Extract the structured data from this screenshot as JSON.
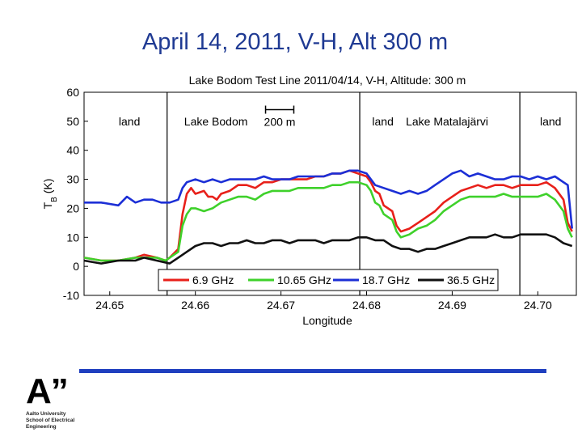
{
  "slide": {
    "title": "April 14, 2011, V-H, Alt 300 m"
  },
  "logo": {
    "mark": "A”",
    "lines": [
      "Aalto University",
      "School of Electrical",
      "Engineering"
    ]
  },
  "colors": {
    "title": "#1f3a93",
    "footer_rule": "#1f3fbf"
  },
  "chart_data": {
    "type": "line",
    "title": "Lake Bodom Test Line 2011/04/14, V-H, Altitude: 300 m",
    "xlabel": "Longitude",
    "ylabel": "T_B (K)",
    "xlim": [
      24.647,
      24.7045
    ],
    "ylim": [
      -10,
      60
    ],
    "xticks": [
      24.65,
      24.66,
      24.67,
      24.68,
      24.69,
      24.7
    ],
    "xtick_labels": [
      "24.65",
      "24.66",
      "24.67",
      "24.68",
      "24.69",
      "24.70"
    ],
    "yticks": [
      -10,
      0,
      10,
      20,
      30,
      40,
      50,
      60
    ],
    "grid": false,
    "legend_position": "bottom",
    "vlines": [
      24.6567,
      24.6792,
      24.6979
    ],
    "regions": [
      {
        "label": "land",
        "x": 24.6523,
        "y": 50
      },
      {
        "label": "Lake Bodom",
        "x": 24.6624,
        "y": 50
      },
      {
        "label": "land",
        "x": 24.6819,
        "y": 50
      },
      {
        "label": "Lake Matalajärvi",
        "x": 24.6894,
        "y": 50
      },
      {
        "label": "land",
        "x": 24.7015,
        "y": 50
      }
    ],
    "scale_bar": {
      "label": "200 m",
      "x_start": 24.6682,
      "x_end": 24.6715,
      "y": 54
    },
    "series": [
      {
        "name": "6.9 GHz",
        "color": "#e8201a",
        "x": [
          24.647,
          24.649,
          24.651,
          24.653,
          24.654,
          24.6555,
          24.6565,
          24.657,
          24.658,
          24.6585,
          24.659,
          24.6595,
          24.66,
          24.661,
          24.6615,
          24.662,
          24.6625,
          24.663,
          24.664,
          24.665,
          24.666,
          24.667,
          24.668,
          24.669,
          24.67,
          24.671,
          24.672,
          24.673,
          24.674,
          24.675,
          24.676,
          24.677,
          24.678,
          24.679,
          24.68,
          24.6805,
          24.681,
          24.6815,
          24.682,
          24.683,
          24.6835,
          24.684,
          24.685,
          24.686,
          24.687,
          24.688,
          24.689,
          24.69,
          24.691,
          24.692,
          24.693,
          24.694,
          24.695,
          24.696,
          24.697,
          24.698,
          24.699,
          24.7,
          24.701,
          24.702,
          24.703,
          24.7035,
          24.704
        ],
        "y": [
          3,
          2,
          2,
          3,
          4,
          3,
          2,
          3,
          6,
          18,
          25,
          27,
          25,
          26,
          24,
          24,
          23,
          25,
          26,
          28,
          28,
          27,
          29,
          29,
          30,
          30,
          30,
          30,
          31,
          31,
          32,
          32,
          33,
          32,
          31,
          29,
          26,
          25,
          21,
          19,
          14,
          12,
          13,
          15,
          17,
          19,
          22,
          24,
          26,
          27,
          28,
          27,
          28,
          28,
          27,
          28,
          28,
          28,
          29,
          27,
          23,
          15,
          12
        ]
      },
      {
        "name": "10.65 GHz",
        "color": "#3fd12b",
        "x": [
          24.647,
          24.649,
          24.651,
          24.653,
          24.654,
          24.6555,
          24.6565,
          24.657,
          24.658,
          24.6585,
          24.659,
          24.6595,
          24.66,
          24.661,
          24.662,
          24.663,
          24.664,
          24.665,
          24.666,
          24.667,
          24.668,
          24.669,
          24.67,
          24.671,
          24.672,
          24.673,
          24.674,
          24.675,
          24.676,
          24.677,
          24.678,
          24.679,
          24.68,
          24.6805,
          24.681,
          24.6815,
          24.682,
          24.683,
          24.6835,
          24.684,
          24.685,
          24.686,
          24.687,
          24.688,
          24.689,
          24.69,
          24.691,
          24.692,
          24.693,
          24.694,
          24.695,
          24.696,
          24.697,
          24.698,
          24.699,
          24.7,
          24.701,
          24.702,
          24.703,
          24.7035,
          24.704
        ],
        "y": [
          3,
          2,
          2,
          3,
          3,
          3,
          2,
          3,
          5,
          14,
          18,
          20,
          20,
          19,
          20,
          22,
          23,
          24,
          24,
          23,
          25,
          26,
          26,
          26,
          27,
          27,
          27,
          27,
          28,
          28,
          29,
          29,
          28,
          26,
          22,
          21,
          18,
          16,
          12,
          10,
          11,
          13,
          14,
          16,
          19,
          21,
          23,
          24,
          24,
          24,
          24,
          25,
          24,
          24,
          24,
          24,
          25,
          23,
          19,
          13,
          10
        ]
      },
      {
        "name": "18.7 GHz",
        "color": "#1c2fd6",
        "x": [
          24.647,
          24.649,
          24.651,
          24.652,
          24.653,
          24.654,
          24.655,
          24.656,
          24.657,
          24.658,
          24.6585,
          24.659,
          24.66,
          24.661,
          24.662,
          24.663,
          24.664,
          24.665,
          24.666,
          24.667,
          24.668,
          24.669,
          24.67,
          24.671,
          24.672,
          24.673,
          24.674,
          24.675,
          24.676,
          24.677,
          24.678,
          24.679,
          24.68,
          24.681,
          24.682,
          24.683,
          24.684,
          24.685,
          24.686,
          24.687,
          24.688,
          24.689,
          24.69,
          24.691,
          24.692,
          24.693,
          24.694,
          24.695,
          24.696,
          24.697,
          24.698,
          24.699,
          24.7,
          24.701,
          24.702,
          24.703,
          24.7035,
          24.704
        ],
        "y": [
          22,
          22,
          21,
          24,
          22,
          23,
          23,
          22,
          22,
          23,
          27,
          29,
          30,
          29,
          30,
          29,
          30,
          30,
          30,
          30,
          31,
          30,
          30,
          30,
          31,
          31,
          31,
          31,
          32,
          32,
          33,
          33,
          32,
          28,
          27,
          26,
          25,
          26,
          25,
          26,
          28,
          30,
          32,
          33,
          31,
          32,
          31,
          30,
          30,
          31,
          31,
          30,
          31,
          30,
          31,
          29,
          28,
          13
        ]
      },
      {
        "name": "36.5 GHz",
        "color": "#111111",
        "x": [
          24.647,
          24.649,
          24.651,
          24.653,
          24.654,
          24.6555,
          24.657,
          24.658,
          24.659,
          24.66,
          24.661,
          24.662,
          24.663,
          24.664,
          24.665,
          24.666,
          24.667,
          24.668,
          24.669,
          24.67,
          24.671,
          24.672,
          24.673,
          24.674,
          24.675,
          24.676,
          24.677,
          24.678,
          24.679,
          24.68,
          24.681,
          24.682,
          24.683,
          24.684,
          24.685,
          24.686,
          24.687,
          24.688,
          24.689,
          24.69,
          24.691,
          24.692,
          24.693,
          24.694,
          24.695,
          24.696,
          24.697,
          24.698,
          24.699,
          24.7,
          24.701,
          24.702,
          24.703,
          24.704
        ],
        "y": [
          2,
          1,
          2,
          2,
          3,
          2,
          1,
          3,
          5,
          7,
          8,
          8,
          7,
          8,
          8,
          9,
          8,
          8,
          9,
          9,
          8,
          9,
          9,
          9,
          8,
          9,
          9,
          9,
          10,
          10,
          9,
          9,
          7,
          6,
          6,
          5,
          6,
          6,
          7,
          8,
          9,
          10,
          10,
          10,
          11,
          10,
          10,
          11,
          11,
          11,
          11,
          10,
          8,
          7
        ]
      }
    ]
  }
}
